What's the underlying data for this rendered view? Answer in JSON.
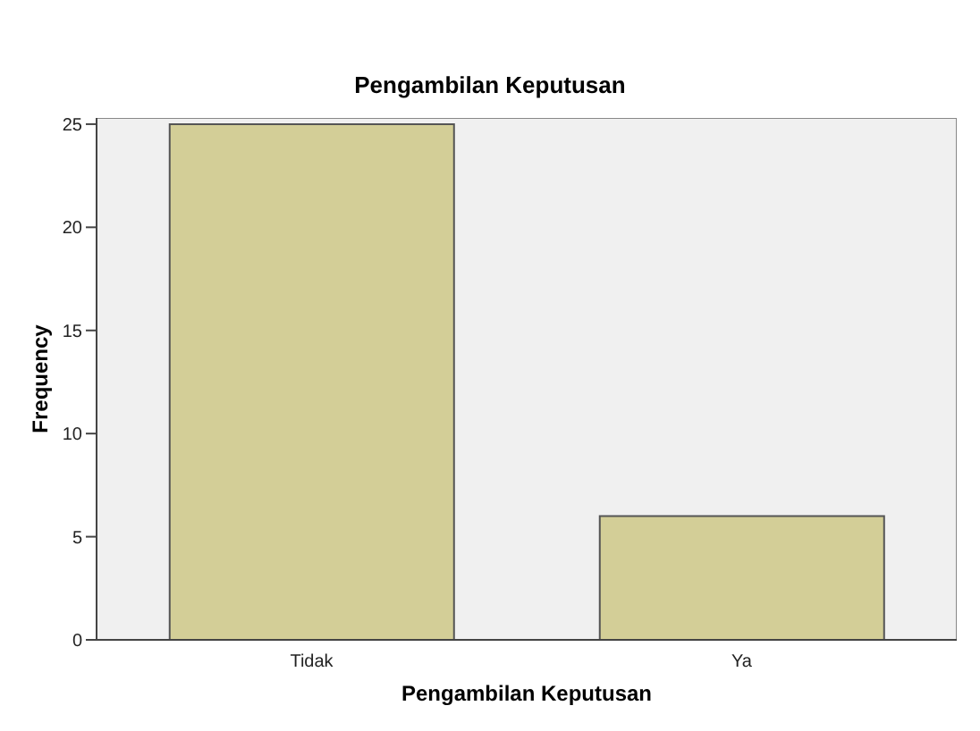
{
  "chart_data": {
    "type": "bar",
    "title": "Pengambilan Keputusan",
    "xlabel": "Pengambilan Keputusan",
    "ylabel": "Frequency",
    "categories": [
      "Tidak",
      "Ya"
    ],
    "values": [
      25,
      6
    ],
    "color": "#d3ce97",
    "ylim": [
      0,
      25.3
    ],
    "yticks": [
      0,
      5,
      10,
      15,
      20,
      25
    ],
    "grid": false,
    "legend": false
  }
}
